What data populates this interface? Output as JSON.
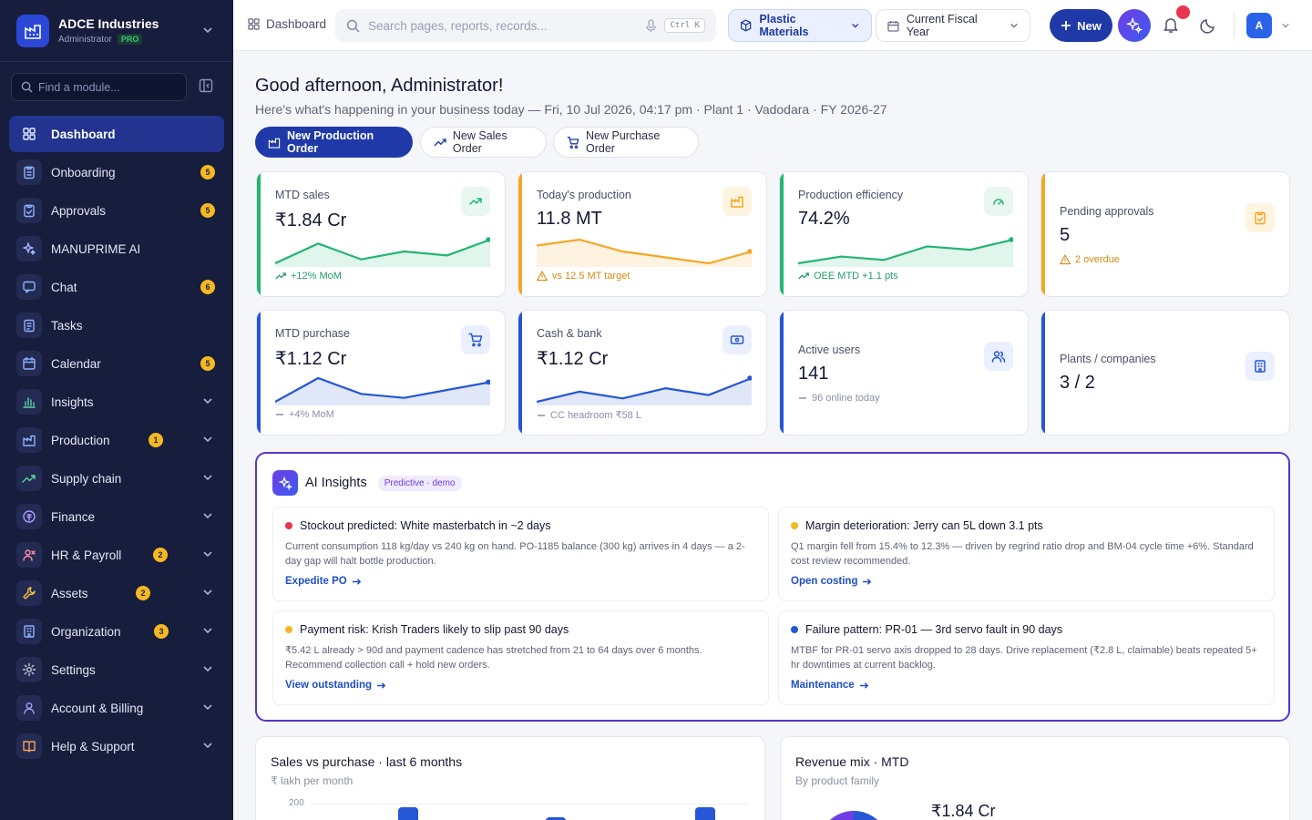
{
  "sidebar": {
    "brand": {
      "name": "ADCE Industries",
      "role": "Administrator",
      "badge": "PRO"
    },
    "search_placeholder": "Find a module...",
    "items": [
      {
        "label": "Dashboard",
        "icon": "grid-icon",
        "active": true
      },
      {
        "label": "Onboarding",
        "icon": "clipboard-icon",
        "badge": "5"
      },
      {
        "label": "Approvals",
        "icon": "clipboard-check-icon",
        "badge": "5"
      },
      {
        "label": "MANUPRIME AI",
        "icon": "sparkles-icon"
      },
      {
        "label": "Chat",
        "icon": "chat-icon",
        "badge": "6"
      },
      {
        "label": "Tasks",
        "icon": "tasks-icon"
      },
      {
        "label": "Calendar",
        "icon": "calendar-icon",
        "badge": "5"
      },
      {
        "label": "Insights",
        "icon": "bar-chart-icon",
        "expandable": true
      },
      {
        "label": "Production",
        "icon": "factory-icon",
        "badge": "1",
        "expandable": true
      },
      {
        "label": "Supply chain",
        "icon": "trend-icon",
        "expandable": true
      },
      {
        "label": "Finance",
        "icon": "coin-icon",
        "expandable": true
      },
      {
        "label": "HR & Payroll",
        "icon": "user-icon",
        "badge": "2",
        "expandable": true
      },
      {
        "label": "Assets",
        "icon": "wrench-icon",
        "badge": "2",
        "expandable": true
      },
      {
        "label": "Organization",
        "icon": "building-icon",
        "badge": "3",
        "expandable": true
      },
      {
        "label": "Settings",
        "icon": "gear-icon",
        "expandable": true
      },
      {
        "label": "Account & Billing",
        "icon": "person-icon",
        "expandable": true
      },
      {
        "label": "Help & Support",
        "icon": "book-icon",
        "expandable": true
      }
    ]
  },
  "topbar": {
    "breadcrumb": "Dashboard",
    "search_placeholder": "Search pages, reports, records...",
    "shortcut": "Ctrl K",
    "material": "Plastic Materials",
    "period": "Current Fiscal Year",
    "new_label": "New",
    "avatar": "A"
  },
  "greeting": {
    "title": "Good afternoon, Administrator!",
    "subtitle": "Here's what's happening in your business today — Fri, 10 Jul 2026, 04:17 pm · Plant 1 · Vadodara · FY 2026-27"
  },
  "actions": {
    "production": "New Production Order",
    "sales": "New Sales Order",
    "purchase": "New Purchase Order"
  },
  "kpis": [
    {
      "title": "MTD sales",
      "value": "₹1.84 Cr",
      "foot": "+12% MoM",
      "color": "#22b573",
      "spark": [
        3,
        8,
        4,
        6,
        5,
        9
      ]
    },
    {
      "title": "Today's production",
      "value": "11.8 MT",
      "foot": "vs 12.5 MT target",
      "color": "#f5a623",
      "spark": [
        7,
        8,
        6,
        5,
        4,
        6
      ]
    },
    {
      "title": "Production efficiency",
      "value": "74.2%",
      "foot": "OEE MTD +1.1 pts",
      "color": "#22b573",
      "spark": [
        2,
        4,
        3,
        7,
        6,
        9
      ]
    },
    {
      "title": "Pending approvals",
      "value": "5",
      "foot": "2 overdue",
      "color": "#f5a623"
    },
    {
      "title": "MTD purchase",
      "value": "₹1.12 Cr",
      "foot": "+4% MoM",
      "color": "#2456d6",
      "spark": [
        2,
        8,
        4,
        3,
        5,
        7
      ]
    },
    {
      "title": "Cash & bank",
      "value": "₹1.12 Cr",
      "foot": "CC headroom ₹58 L",
      "color": "#2456d6",
      "spark": [
        3,
        6,
        4,
        7,
        5,
        10
      ]
    },
    {
      "title": "Active users",
      "value": "141",
      "foot": "96 online today",
      "color": "#2456d6"
    },
    {
      "title": "Plants / companies",
      "value": "3 / 2",
      "color": "#2456d6"
    }
  ],
  "ai": {
    "title": "AI Insights",
    "chip": "Predictive · demo",
    "items": [
      {
        "title": "Stockout predicted: White masterbatch in ~2 days",
        "body": "Current consumption 118 kg/day vs 240 kg on hand. PO-1185 balance (300 kg) arrives in 4 days — a 2-day gap will halt bottle production.",
        "link": "Expedite PO",
        "color": "#e8344e"
      },
      {
        "title": "Margin deterioration: Jerry can 5L down 3.1 pts",
        "body": "Q1 margin fell from 15.4% to 12.3% — driven by regrind ratio drop and BM-04 cycle time +6%. Standard cost review recommended.",
        "link": "Open costing",
        "color": "#f5b823"
      },
      {
        "title": "Payment risk: Krish Traders likely to slip past 90 days",
        "body": "₹5.42 L already > 90d and payment cadence has stretched from 21 to 64 days over 6 months. Recommend collection call + hold new orders.",
        "link": "View outstanding",
        "color": "#f5b823"
      },
      {
        "title": "Failure pattern: PR-01 — 3rd servo fault in 90 days",
        "body": "MTBF for PR-01 servo axis dropped to 28 days. Drive replacement (₹2.8 L, claimable) beats repeated 5+ hr downtimes at current backlog.",
        "link": "Maintenance",
        "color": "#2456d6"
      }
    ]
  },
  "charts": {
    "sales_purchase": {
      "title": "Sales vs purchase · last 6 months",
      "subtitle": "₹ lakh per month",
      "y_tick": "200"
    },
    "revenue_mix": {
      "title": "Revenue mix · MTD",
      "subtitle": "By product family",
      "total": "₹1.84 Cr"
    }
  }
}
